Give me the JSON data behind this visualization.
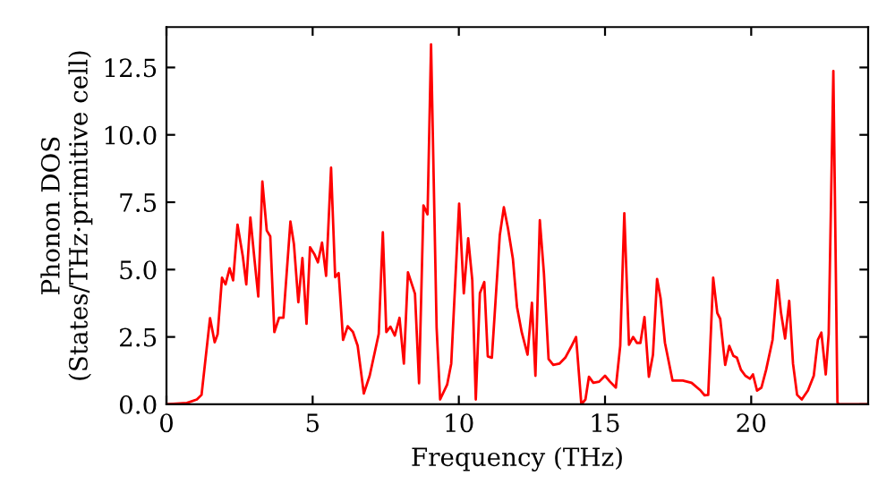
{
  "chart_data": {
    "type": "line",
    "xlabel": "Frequency (THz)",
    "ylabel": "Phonon DOS\n(States/THz·primitive cell)",
    "xlim": [
      0,
      24
    ],
    "ylim": [
      0,
      14
    ],
    "xticks": [
      0,
      5,
      10,
      15,
      20
    ],
    "yticks": [
      {
        "value": 0,
        "label": "0.0"
      },
      2.5,
      {
        "value": 5,
        "label": "5.0"
      },
      7.5,
      {
        "value": 10,
        "label": "10.0"
      },
      12.5
    ],
    "grid": false,
    "legend": false,
    "series": [
      {
        "color": "#ff0000",
        "x": [
          0,
          0.7,
          1.04,
          1.2,
          1.49,
          1.65,
          1.75,
          1.9,
          2.02,
          2.16,
          2.28,
          2.43,
          2.61,
          2.73,
          2.87,
          3.02,
          3.14,
          3.28,
          3.43,
          3.55,
          3.69,
          3.85,
          4.0,
          4.24,
          4.36,
          4.51,
          4.65,
          4.79,
          4.91,
          5.06,
          5.18,
          5.32,
          5.46,
          5.63,
          5.77,
          5.89,
          6.04,
          6.2,
          6.38,
          6.54,
          6.75,
          6.95,
          7.26,
          7.4,
          7.52,
          7.66,
          7.81,
          7.97,
          8.12,
          8.26,
          8.5,
          8.64,
          8.79,
          8.93,
          9.05,
          9.24,
          9.36,
          9.6,
          9.74,
          10.01,
          10.17,
          10.32,
          10.46,
          10.58,
          10.72,
          10.87,
          10.99,
          11.13,
          11.4,
          11.54,
          11.68,
          11.85,
          11.99,
          12.15,
          12.35,
          12.5,
          12.62,
          12.77,
          12.91,
          13.07,
          13.23,
          13.44,
          13.64,
          13.84,
          14.01,
          14.19,
          14.33,
          14.45,
          14.6,
          14.8,
          15.0,
          15.17,
          15.37,
          15.52,
          15.66,
          15.82,
          15.96,
          16.09,
          16.21,
          16.35,
          16.5,
          16.64,
          16.78,
          16.9,
          17.05,
          17.31,
          17.66,
          17.96,
          18.27,
          18.41,
          18.53,
          18.7,
          18.84,
          18.94,
          19.11,
          19.25,
          19.39,
          19.51,
          19.65,
          19.8,
          19.96,
          20.06,
          20.2,
          20.35,
          20.51,
          20.73,
          20.9,
          21.02,
          21.16,
          21.3,
          21.43,
          21.57,
          21.73,
          21.94,
          22.14,
          22.28,
          22.4,
          22.55,
          22.65,
          22.81,
          22.95,
          23.0,
          24.0
        ],
        "values": [
          0,
          0.05,
          0.18,
          0.35,
          3.2,
          2.3,
          2.6,
          4.7,
          4.45,
          5.05,
          4.6,
          6.67,
          5.5,
          4.45,
          6.93,
          5.27,
          4.0,
          8.27,
          6.45,
          6.23,
          2.68,
          3.21,
          3.21,
          6.78,
          5.94,
          3.79,
          5.43,
          2.99,
          5.83,
          5.57,
          5.27,
          6.0,
          4.77,
          8.78,
          4.72,
          4.87,
          2.39,
          2.9,
          2.68,
          2.17,
          0.4,
          1.06,
          2.61,
          6.38,
          2.68,
          2.88,
          2.55,
          3.21,
          1.51,
          4.9,
          4.1,
          0.78,
          7.38,
          7.05,
          13.36,
          2.84,
          0.18,
          0.73,
          1.51,
          7.45,
          4.12,
          6.16,
          4.61,
          0.18,
          4.12,
          4.54,
          1.78,
          1.73,
          6.27,
          7.31,
          6.54,
          5.39,
          3.61,
          2.68,
          1.84,
          3.77,
          1.06,
          6.83,
          4.87,
          1.68,
          1.46,
          1.51,
          1.73,
          2.13,
          2.5,
          0,
          0.18,
          1.02,
          0.8,
          0.84,
          1.06,
          0.84,
          0.62,
          2.17,
          7.09,
          2.21,
          2.5,
          2.28,
          2.28,
          3.24,
          1.02,
          1.84,
          4.65,
          3.94,
          2.28,
          0.88,
          0.88,
          0.8,
          0.51,
          0.33,
          0.35,
          4.7,
          3.39,
          3.17,
          1.46,
          2.17,
          1.8,
          1.73,
          1.28,
          1.06,
          0.95,
          1.11,
          0.51,
          0.62,
          1.28,
          2.39,
          4.61,
          3.39,
          2.44,
          3.84,
          1.51,
          0.35,
          0.18,
          0.51,
          1.06,
          2.39,
          2.66,
          1.11,
          2.61,
          12.37,
          0.07,
          0,
          0
        ]
      }
    ]
  }
}
